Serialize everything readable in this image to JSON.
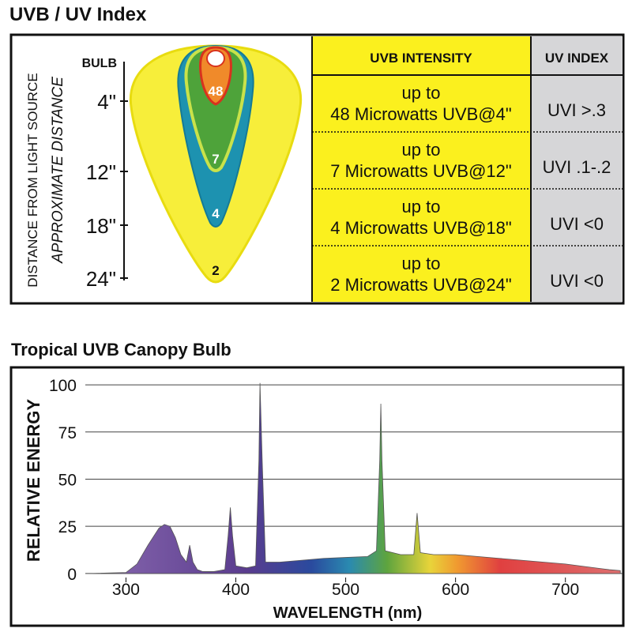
{
  "uv_index": {
    "title": "UVB / UV Index",
    "diagram": {
      "bulb_label": "BULB",
      "axis_title": "DISTANCE FROM LIGHT SOURCE",
      "axis_subtitle": "APPROXIMATE DISTANCE",
      "distances": [
        "4\"",
        "12\"",
        "18\"",
        "24\""
      ],
      "zone_labels": [
        "48",
        "7",
        "4",
        "2"
      ]
    },
    "table": {
      "headers": [
        "UVB INTENSITY",
        "UV INDEX"
      ],
      "rows": [
        [
          [
            "up to",
            "48 Microwatts UVB@4\""
          ],
          "UVI >.3"
        ],
        [
          [
            "up to",
            "7 Microwatts UVB@12\""
          ],
          "UVI .1-.2"
        ],
        [
          [
            "up to",
            "4 Microwatts UVB@18\""
          ],
          "UVI <0"
        ],
        [
          [
            "up to",
            "2 Microwatts UVB@24\""
          ],
          "UVI <0"
        ]
      ]
    }
  },
  "chart_data": {
    "type": "area",
    "title": "Tropical UVB Canopy Bulb",
    "x_label": "WAVELENGTH (nm)",
    "y_label": "RELATIVE ENERGY",
    "x": [
      270,
      300,
      310,
      320,
      330,
      335,
      340,
      345,
      350,
      355,
      358,
      361,
      365,
      370,
      380,
      390,
      393,
      395,
      397,
      400,
      410,
      418,
      421,
      422,
      424,
      427,
      440,
      460,
      480,
      500,
      520,
      528,
      531,
      532,
      533,
      536,
      550,
      562,
      565,
      568,
      580,
      600,
      620,
      640,
      660,
      680,
      700,
      720,
      740,
      750
    ],
    "values": [
      0,
      0.5,
      5,
      15,
      24,
      26,
      25,
      19,
      10,
      6,
      15,
      6,
      2,
      1,
      1,
      2,
      20,
      35,
      20,
      4,
      3,
      4,
      60,
      101,
      60,
      6,
      6,
      7,
      8,
      8.5,
      9,
      12,
      60,
      90,
      60,
      12,
      10,
      10,
      32,
      11,
      10,
      10,
      9,
      8,
      7,
      6,
      5,
      3.5,
      2,
      1.5
    ],
    "xlim": [
      263,
      752
    ],
    "ylim": [
      -3,
      108
    ],
    "xticks": [
      300,
      400,
      500,
      600,
      700
    ],
    "yticks": [
      0,
      25,
      50,
      75,
      100
    ],
    "grid": true
  }
}
